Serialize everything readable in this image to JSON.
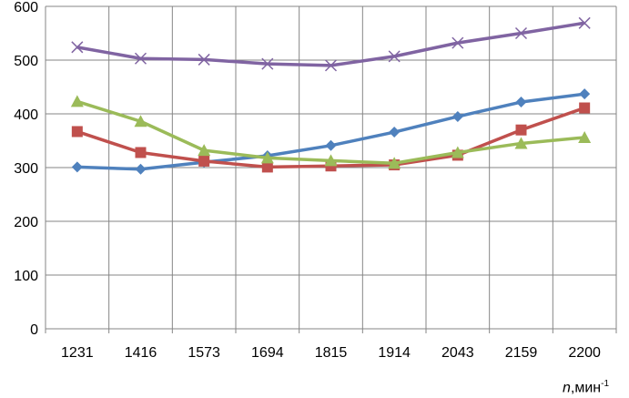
{
  "chart_data": {
    "type": "line",
    "categories": [
      "1231",
      "1416",
      "1573",
      "1694",
      "1815",
      "1914",
      "2043",
      "2159",
      "2200"
    ],
    "xlabel": {
      "var": "n",
      "unit": ",мин",
      "exp": "-1"
    },
    "ylabel": "",
    "ylim": [
      0,
      600
    ],
    "yticks": [
      0,
      100,
      200,
      300,
      400,
      500,
      600
    ],
    "grid": true,
    "legend": "none",
    "series": [
      {
        "marker": "diamond",
        "color": "#4F81BD",
        "values": [
          301,
          297,
          310,
          322,
          341,
          366,
          395,
          422,
          437
        ]
      },
      {
        "marker": "square",
        "color": "#C0504D",
        "values": [
          367,
          328,
          312,
          301,
          303,
          305,
          323,
          370,
          411
        ]
      },
      {
        "marker": "triangle",
        "color": "#9BBB59",
        "values": [
          423,
          386,
          332,
          318,
          313,
          308,
          328,
          345,
          356
        ]
      },
      {
        "marker": "x",
        "color": "#8064A2",
        "values": [
          524,
          503,
          501,
          493,
          490,
          507,
          532,
          550,
          569
        ]
      }
    ]
  }
}
